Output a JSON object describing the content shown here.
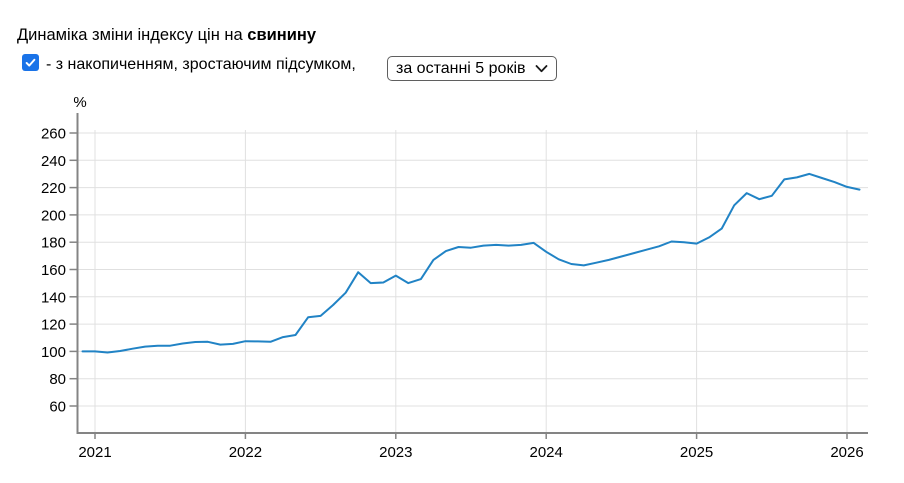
{
  "header": {
    "title_prefix": "Динаміка зміни індексу цін на ",
    "title_bold": "свинину",
    "checkbox": {
      "checked": true,
      "label": "- з накопиченням, зростаючим підсумком,"
    },
    "period_select": {
      "value": "за останні 5 років",
      "chevron_icon": "chevron-down"
    }
  },
  "chart_data": {
    "type": "line",
    "title": "Динаміка зміни індексу цін на свинину",
    "ylabel": "%",
    "xlabel": "",
    "grid": true,
    "legend": "none",
    "line_color": "#2183c5",
    "axis_color": "#848484",
    "grid_color": "#e0e0e0",
    "label_color": "#000000",
    "y_ticks": [
      260,
      240,
      220,
      200,
      180,
      160,
      140,
      120,
      100,
      80,
      60
    ],
    "ylim": [
      40,
      275
    ],
    "x_ticks": [
      2021,
      2022,
      2023,
      2024,
      2025,
      2026
    ],
    "x_interval": "monthly",
    "x_start_month": "2020-12",
    "x_end_month": "2026-02",
    "values": [
      100,
      100,
      99.2,
      100.3,
      102,
      103.5,
      104.2,
      104.2,
      105.8,
      106.9,
      107,
      105,
      105.5,
      107.5,
      107.3,
      107,
      110.5,
      112,
      125,
      126,
      134,
      143,
      158,
      150,
      150.5,
      155.5,
      150,
      153,
      167,
      173.5,
      176.5,
      176,
      177.5,
      178,
      177.5,
      178,
      179.5,
      173,
      167.5,
      164,
      163,
      165,
      167,
      169.5,
      172,
      174.5,
      177,
      180.5,
      180,
      179,
      183.5,
      190,
      207,
      216,
      211.5,
      214,
      226,
      227.5,
      230,
      227,
      224,
      220.5,
      218.5
    ]
  }
}
